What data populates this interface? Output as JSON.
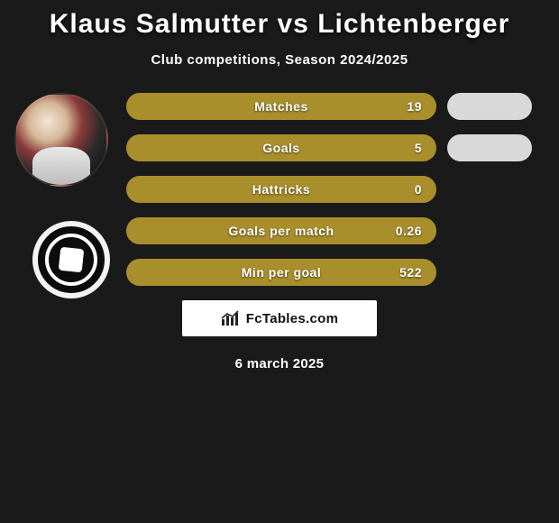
{
  "title_left": "Klaus Salmutter",
  "title_right": "Lichtenberger",
  "subtitle": "Club competitions, Season 2024/2025",
  "colors": {
    "left_fill": "#a88f2c",
    "left_border": "#a88f2c",
    "right_fill": "#d9d9d9",
    "background": "#1a1a1a",
    "text": "#ffffff"
  },
  "stats": [
    {
      "label": "Matches",
      "left_value": "19",
      "show_right": true
    },
    {
      "label": "Goals",
      "left_value": "5",
      "show_right": true
    },
    {
      "label": "Hattricks",
      "left_value": "0",
      "show_right": false
    },
    {
      "label": "Goals per match",
      "left_value": "0.26",
      "show_right": false
    },
    {
      "label": "Min per goal",
      "left_value": "522",
      "show_right": false
    }
  ],
  "brand": "FcTables.com",
  "date": "6 march 2025"
}
